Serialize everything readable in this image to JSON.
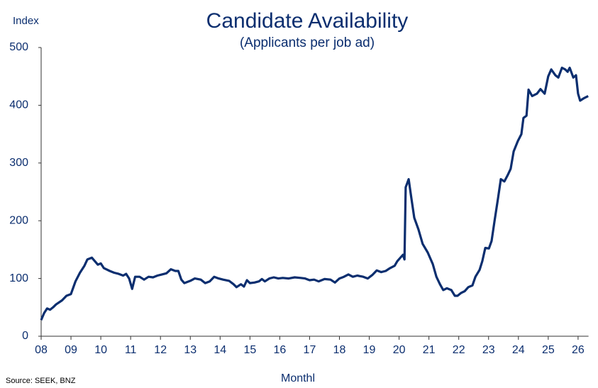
{
  "chart_data": {
    "type": "line",
    "title": "Candidate Availability",
    "subtitle": "(Applicants per job ad)",
    "ylabel": "Index",
    "xlabel": "Monthl",
    "source": "Source: SEEK, BNZ",
    "xlim": [
      2008,
      2026.35
    ],
    "xticks": [
      {
        "value": 2008,
        "label": "08"
      },
      {
        "value": 2009,
        "label": "09"
      },
      {
        "value": 2010,
        "label": "10"
      },
      {
        "value": 2011,
        "label": "11"
      },
      {
        "value": 2012,
        "label": "12"
      },
      {
        "value": 2013,
        "label": "13"
      },
      {
        "value": 2014,
        "label": "14"
      },
      {
        "value": 2015,
        "label": "15"
      },
      {
        "value": 2016,
        "label": "16"
      },
      {
        "value": 2017,
        "label": "17"
      },
      {
        "value": 2018,
        "label": "18"
      },
      {
        "value": 2019,
        "label": "19"
      },
      {
        "value": 2020,
        "label": "20"
      },
      {
        "value": 2021,
        "label": "21"
      },
      {
        "value": 2022,
        "label": "22"
      },
      {
        "value": 2023,
        "label": "23"
      },
      {
        "value": 2024,
        "label": "24"
      },
      {
        "value": 2025,
        "label": "25"
      },
      {
        "value": 2026,
        "label": "26"
      }
    ],
    "ylim": [
      0,
      500
    ],
    "yticks": [
      0,
      100,
      200,
      300,
      400,
      500
    ],
    "grid": false,
    "color": "#0b2e6f",
    "x": [
      2008.0,
      2008.1,
      2008.2,
      2008.3,
      2008.4,
      2008.5,
      2008.7,
      2008.85,
      2009.0,
      2009.15,
      2009.3,
      2009.45,
      2009.55,
      2009.7,
      2009.8,
      2009.9,
      2010.0,
      2010.1,
      2010.3,
      2010.45,
      2010.6,
      2010.75,
      2010.85,
      2010.95,
      2011.05,
      2011.15,
      2011.3,
      2011.45,
      2011.6,
      2011.75,
      2011.9,
      2012.05,
      2012.2,
      2012.35,
      2012.5,
      2012.6,
      2012.7,
      2012.8,
      2013.0,
      2013.15,
      2013.35,
      2013.5,
      2013.65,
      2013.8,
      2013.95,
      2014.1,
      2014.3,
      2014.45,
      2014.55,
      2014.7,
      2014.8,
      2014.9,
      2015.0,
      2015.15,
      2015.3,
      2015.4,
      2015.5,
      2015.65,
      2015.8,
      2015.95,
      2016.1,
      2016.3,
      2016.5,
      2016.7,
      2016.85,
      2017.0,
      2017.15,
      2017.3,
      2017.5,
      2017.7,
      2017.85,
      2018.0,
      2018.15,
      2018.3,
      2018.45,
      2018.6,
      2018.8,
      2018.95,
      2019.1,
      2019.25,
      2019.4,
      2019.55,
      2019.7,
      2019.85,
      2019.94,
      2020.06,
      2020.13,
      2020.18,
      2020.22,
      2020.32,
      2020.41,
      2020.51,
      2020.65,
      2020.79,
      2020.96,
      2021.13,
      2021.25,
      2021.37,
      2021.48,
      2021.6,
      2021.75,
      2021.87,
      2021.96,
      2022.08,
      2022.2,
      2022.32,
      2022.46,
      2022.56,
      2022.7,
      2022.79,
      2022.89,
      2023.01,
      2023.1,
      2023.2,
      2023.32,
      2023.41,
      2023.53,
      2023.65,
      2023.74,
      2023.84,
      2023.98,
      2024.1,
      2024.17,
      2024.27,
      2024.34,
      2024.46,
      2024.62,
      2024.74,
      2024.88,
      2025.0,
      2025.1,
      2025.24,
      2025.34,
      2025.46,
      2025.57,
      2025.65,
      2025.72,
      2025.84,
      2025.93,
      2026.0,
      2026.07,
      2026.19,
      2026.34
    ],
    "series": [
      {
        "name": "Candidate Availability",
        "color": "#0b2e6f",
        "values": [
          28,
          40,
          48,
          46,
          50,
          55,
          62,
          70,
          73,
          95,
          110,
          122,
          133,
          136,
          130,
          124,
          126,
          118,
          113,
          110,
          108,
          105,
          108,
          100,
          82,
          103,
          103,
          98,
          103,
          102,
          105,
          107,
          109,
          116,
          113,
          113,
          98,
          92,
          96,
          100,
          98,
          92,
          95,
          103,
          100,
          98,
          96,
          90,
          85,
          90,
          86,
          97,
          92,
          93,
          95,
          99,
          95,
          100,
          102,
          100,
          101,
          100,
          102,
          101,
          100,
          97,
          98,
          95,
          99,
          98,
          93,
          100,
          103,
          107,
          103,
          105,
          103,
          100,
          106,
          114,
          111,
          113,
          118,
          122,
          130,
          137,
          141,
          133,
          258,
          272,
          240,
          205,
          185,
          160,
          145,
          125,
          103,
          90,
          80,
          83,
          80,
          70,
          70,
          75,
          78,
          85,
          88,
          103,
          115,
          130,
          153,
          152,
          165,
          200,
          240,
          272,
          268,
          280,
          290,
          320,
          338,
          350,
          378,
          382,
          427,
          416,
          420,
          428,
          420,
          450,
          462,
          452,
          448,
          465,
          462,
          458,
          465,
          448,
          452,
          420,
          408,
          412,
          416
        ]
      }
    ]
  }
}
